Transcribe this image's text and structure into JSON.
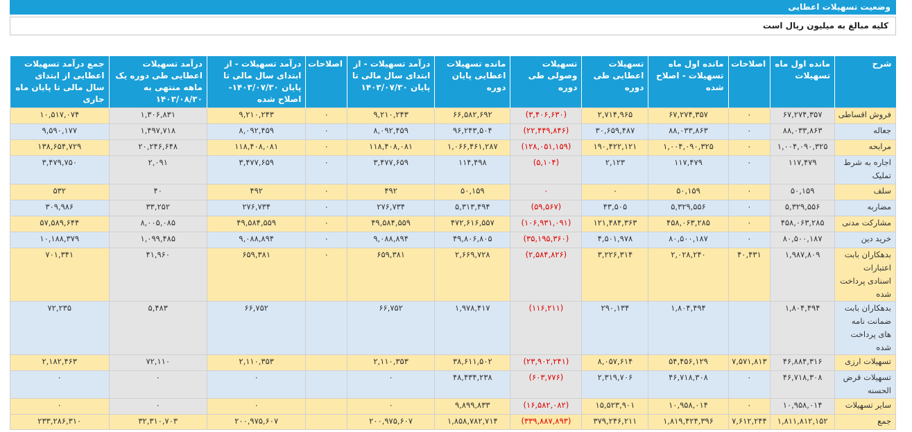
{
  "page": {
    "title": "وضعیت تسهیلات اعطایی",
    "subtitle": "کلیه مبالغ به میلیون ریال است"
  },
  "table": {
    "headers": [
      "شرح",
      "مانده اول ماه تسهیلات",
      "اصلاحات",
      "مانده اول ماه تسهیلات - اصلاح شده",
      "تسهیلات اعطایی طی دوره",
      "تسهیلات وصولی طی دوره",
      "مانده تسهیلات اعطایی پایان دوره",
      "درآمد تسهیلات - از ابتدای سال مالی تا پایان ۱۴۰۳/۰۷/۳۰",
      "اصلاحات",
      "درآمد تسهیلات - از ابتدای سال مالی تا پایان ۱۴۰۳/۰۷/۳۰- اصلاح شده",
      "درآمد تسهیلات اعطایی طی دوره یک ماهه منتهی به ۱۴۰۳/۰۸/۳۰",
      "جمع درآمد تسهیلات اعطایی از ابتدای سال مالی تا پایان ماه جاری"
    ],
    "rows": [
      [
        "فروش اقساطی",
        "۶۷,۲۷۴,۳۵۷",
        "۰",
        "۶۷,۲۷۴,۳۵۷",
        "۲,۷۱۴,۹۶۵",
        "(۳,۴۰۶,۶۳۰)",
        "۶۶,۵۸۲,۶۹۲",
        "۹,۲۱۰,۲۴۳",
        "۰",
        "۹,۲۱۰,۲۴۳",
        "۱,۳۰۶,۸۳۱",
        "۱۰,۵۱۷,۰۷۴"
      ],
      [
        "جعاله",
        "۸۸,۰۳۳,۸۶۳",
        "۰",
        "۸۸,۰۳۳,۸۶۳",
        "۳۰,۶۵۹,۴۸۷",
        "(۲۲,۴۴۹,۸۴۶)",
        "۹۶,۲۴۳,۵۰۴",
        "۸,۰۹۲,۴۵۹",
        "۰",
        "۸,۰۹۲,۴۵۹",
        "۱,۴۹۷,۷۱۸",
        "۹,۵۹۰,۱۷۷"
      ],
      [
        "مرابحه",
        "۱,۰۰۴,۰۹۰,۳۲۵",
        "۰",
        "۱,۰۰۴,۰۹۰,۳۲۵",
        "۱۹۰,۴۲۲,۱۲۱",
        "(۱۲۸,۰۵۱,۱۵۹)",
        "۱,۰۶۶,۴۶۱,۲۸۷",
        "۱۱۸,۴۰۸,۰۸۱",
        "۰",
        "۱۱۸,۴۰۸,۰۸۱",
        "۲۰,۲۴۶,۶۴۸",
        "۱۳۸,۶۵۴,۷۲۹"
      ],
      [
        "اجاره به شرط تملیک",
        "۱۱۷,۴۷۹",
        "۰",
        "۱۱۷,۴۷۹",
        "۲,۱۲۳",
        "(۵,۱۰۴)",
        "۱۱۴,۴۹۸",
        "۳,۴۷۷,۶۵۹",
        "۰",
        "۳,۴۷۷,۶۵۹",
        "۲,۰۹۱",
        "۳,۴۷۹,۷۵۰"
      ],
      [
        "سلف",
        "۵۰,۱۵۹",
        "۰",
        "۵۰,۱۵۹",
        "۰",
        "۰",
        "۵۰,۱۵۹",
        "۴۹۲",
        "۰",
        "۴۹۲",
        "۴۰",
        "۵۳۲"
      ],
      [
        "مضاربه",
        "۵,۳۲۹,۵۵۶",
        "۰",
        "۵,۳۲۹,۵۵۶",
        "۴۳,۵۰۵",
        "(۵۹,۵۶۷)",
        "۵,۳۱۳,۴۹۴",
        "۲۷۶,۷۳۴",
        "۰",
        "۲۷۶,۷۳۴",
        "۳۳,۲۵۲",
        "۳۰۹,۹۸۶"
      ],
      [
        "مشارکت مدنی",
        "۴۵۸,۰۶۳,۲۸۵",
        "۰",
        "۴۵۸,۰۶۳,۲۸۵",
        "۱۲۱,۴۸۴,۳۶۳",
        "(۱۰۶,۹۳۱,۰۹۱)",
        "۴۷۲,۶۱۶,۵۵۷",
        "۴۹,۵۸۴,۵۵۹",
        "۰",
        "۴۹,۵۸۴,۵۵۹",
        "۸,۰۰۵,۰۸۵",
        "۵۷,۵۸۹,۶۴۴"
      ],
      [
        "خرید دین",
        "۸۰,۵۰۰,۱۸۷",
        "۰",
        "۸۰,۵۰۰,۱۸۷",
        "۴,۵۰۱,۹۷۸",
        "(۳۵,۱۹۵,۳۶۰)",
        "۴۹,۸۰۶,۸۰۵",
        "۹,۰۸۸,۸۹۴",
        "۰",
        "۹,۰۸۸,۸۹۴",
        "۱,۰۹۹,۴۸۵",
        "۱۰,۱۸۸,۳۷۹"
      ],
      [
        "بدهکاران بابت اعتبارات اسنادی پرداخت شده",
        "۱,۹۸۷,۸۰۹",
        "۴۰,۴۳۱",
        "۲,۰۲۸,۲۴۰",
        "۳,۲۲۶,۳۱۴",
        "(۲,۵۸۴,۸۲۶)",
        "۲,۶۶۹,۷۲۸",
        "۶۵۹,۳۸۱",
        "۰",
        "۶۵۹,۳۸۱",
        "۴۱,۹۶۰",
        "۷۰۱,۳۴۱"
      ],
      [
        "بدهکاران بابت ضمانت نامه های پرداخت شده",
        "۱,۸۰۴,۴۹۴",
        "",
        "۱,۸۰۴,۴۹۴",
        "۲۹۰,۱۳۴",
        "(۱۱۶,۲۱۱)",
        "۱,۹۷۸,۴۱۷",
        "۶۶,۷۵۲",
        "",
        "۶۶,۷۵۲",
        "۵,۴۸۳",
        "۷۲,۲۳۵"
      ],
      [
        "تسهیلات ارزی",
        "۴۶,۸۸۴,۳۱۶",
        "۷,۵۷۱,۸۱۳",
        "۵۴,۴۵۶,۱۲۹",
        "۸,۰۵۷,۶۱۴",
        "(۲۳,۹۰۲,۲۴۱)",
        "۳۸,۶۱۱,۵۰۲",
        "۲,۱۱۰,۳۵۳",
        "",
        "۲,۱۱۰,۳۵۳",
        "۷۲,۱۱۰",
        "۲,۱۸۲,۴۶۳"
      ],
      [
        "تسهیلات قرض الحسنه",
        "۴۶,۷۱۸,۳۰۸",
        "۰",
        "۴۶,۷۱۸,۳۰۸",
        "۲,۳۱۹,۷۰۶",
        "(۶۰۳,۷۷۶)",
        "۴۸,۴۳۴,۲۳۸",
        "۰",
        "",
        "۰",
        "۰",
        "۰"
      ],
      [
        "سایر تسهیلات",
        "۱۰,۹۵۸,۰۱۴",
        "۰",
        "۱۰,۹۵۸,۰۱۴",
        "۱۵,۵۲۳,۹۰۱",
        "(۱۶,۵۸۲,۰۸۲)",
        "۹,۸۹۹,۸۳۳",
        "۰",
        "",
        "۰",
        "۰",
        "۰"
      ],
      [
        "جمع",
        "۱,۸۱۱,۸۱۲,۱۵۲",
        "۷,۶۱۲,۲۴۴",
        "۱,۸۱۹,۴۲۴,۳۹۶",
        "۳۷۹,۲۴۶,۲۱۱",
        "(۳۳۹,۸۸۷,۸۹۳)",
        "۱,۸۵۸,۷۸۲,۷۱۴",
        "۲۰۰,۹۷۵,۶۰۷",
        "",
        "۲۰۰,۹۷۵,۶۰۷",
        "۳۲,۳۱۰,۷۰۳",
        "۲۳۳,۲۸۶,۳۱۰"
      ]
    ]
  }
}
